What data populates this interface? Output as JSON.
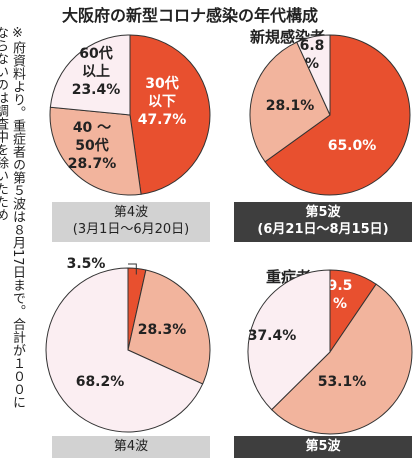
{
  "title": "大阪府の新型コロナ感染の年代構成",
  "sections": {
    "new": "新規感染者",
    "severe": "重症者"
  },
  "note": {
    "line1": "※府資料より。重症者の第５波は８月17日まで。合計が１００に",
    "line2": "ならないのは調査中を除いたため"
  },
  "bands": {
    "wave4_top_line1": "第4波",
    "wave4_top_line2": "(3月1日～6月20日)",
    "wave5_top_line1": "第5波",
    "wave5_top_line2": "(6月21日～8月15日)",
    "wave4_bottom": "第4波",
    "wave5_bottom": "第5波"
  },
  "colors": {
    "under30": "#e8502f",
    "age40_50": "#f2b49d",
    "over60": "#fbeef2",
    "stroke": "#333333"
  },
  "chart_data": [
    {
      "type": "pie",
      "group": "新規感染者",
      "wave": "第4波",
      "slices": [
        {
          "label": "30代以下",
          "value": 47.7,
          "color": "#e8502f"
        },
        {
          "label": "40～50代",
          "value": 28.7,
          "color": "#f2b49d"
        },
        {
          "label": "60代以上",
          "value": 23.4,
          "color": "#fbeef2"
        }
      ]
    },
    {
      "type": "pie",
      "group": "新規感染者",
      "wave": "第5波",
      "slices": [
        {
          "label": "",
          "value": 65.0,
          "color": "#e8502f"
        },
        {
          "label": "",
          "value": 28.1,
          "color": "#f2b49d"
        },
        {
          "label": "",
          "value": 6.8,
          "color": "#fbeef2"
        }
      ]
    },
    {
      "type": "pie",
      "group": "重症者",
      "wave": "第4波",
      "slices": [
        {
          "label": "",
          "value": 3.5,
          "color": "#e8502f"
        },
        {
          "label": "",
          "value": 28.3,
          "color": "#f2b49d"
        },
        {
          "label": "",
          "value": 68.2,
          "color": "#fbeef2"
        }
      ]
    },
    {
      "type": "pie",
      "group": "重症者",
      "wave": "第5波",
      "slices": [
        {
          "label": "",
          "value": 9.5,
          "color": "#e8502f"
        },
        {
          "label": "",
          "value": 53.1,
          "color": "#f2b49d"
        },
        {
          "label": "",
          "value": 37.4,
          "color": "#fbeef2"
        }
      ]
    }
  ]
}
